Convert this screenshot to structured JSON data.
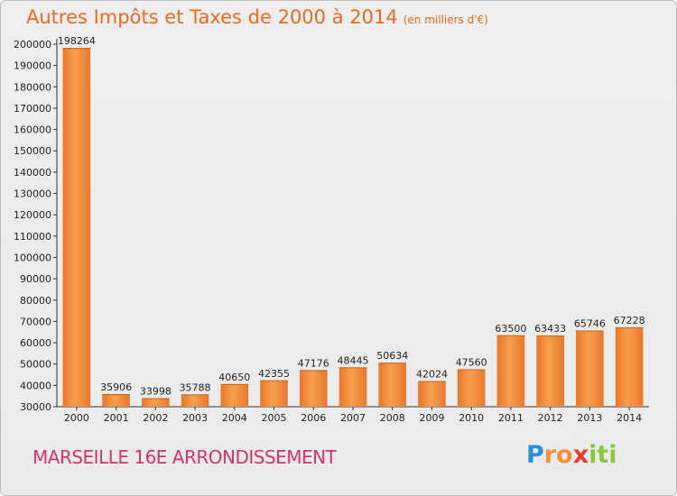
{
  "chart_data": {
    "type": "bar",
    "title": "Autres Impôts et Taxes de 2000 à 2014",
    "subtitle": "(en milliers d'€)",
    "categories": [
      "2000",
      "2001",
      "2002",
      "2003",
      "2004",
      "2005",
      "2006",
      "2007",
      "2008",
      "2009",
      "2010",
      "2011",
      "2012",
      "2013",
      "2014"
    ],
    "values": [
      198264,
      35906,
      33998,
      35788,
      40650,
      42355,
      47176,
      48445,
      50634,
      42024,
      47560,
      63500,
      63433,
      65746,
      67228
    ],
    "ylim": [
      30000,
      200000
    ],
    "yticks": [
      30000,
      40000,
      50000,
      60000,
      70000,
      80000,
      90000,
      100000,
      110000,
      120000,
      130000,
      140000,
      150000,
      160000,
      170000,
      180000,
      190000,
      200000
    ],
    "xlabel": "",
    "ylabel": "",
    "grid": false,
    "bar_color": "#f0913c"
  },
  "footer": {
    "location": "MARSEILLE 16E  ARRONDISSEMENT",
    "logo_letters": [
      "P",
      "r",
      "o",
      "x",
      "i",
      "t",
      "i"
    ],
    "logo_colors": [
      "#2a8fd6",
      "#f0913c",
      "#f0913c",
      "#e63b2e",
      "#8cc63f",
      "#8cc63f",
      "#8cc63f"
    ]
  }
}
